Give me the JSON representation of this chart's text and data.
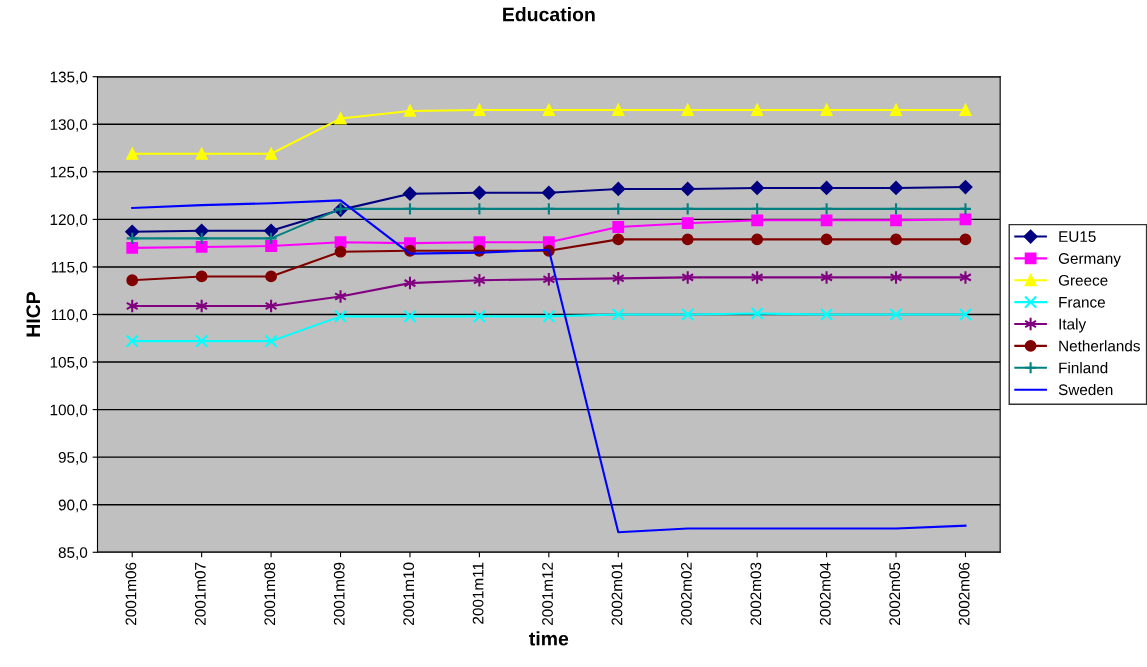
{
  "chart_data": {
    "type": "line",
    "title": "Education",
    "xlabel": "time",
    "ylabel": "HICP",
    "categories": [
      "2001m06",
      "2001m07",
      "2001m08",
      "2001m09",
      "2001m10",
      "2001m11",
      "2001m12",
      "2002m01",
      "2002m02",
      "2002m03",
      "2002m04",
      "2002m05",
      "2002m06"
    ],
    "ylim": [
      85,
      135
    ],
    "yticks": [
      {
        "value": 85,
        "label": "85,0"
      },
      {
        "value": 90,
        "label": "90,0"
      },
      {
        "value": 95,
        "label": "95,0"
      },
      {
        "value": 100,
        "label": "100,0"
      },
      {
        "value": 105,
        "label": "105,0"
      },
      {
        "value": 110,
        "label": "110,0"
      },
      {
        "value": 115,
        "label": "115,0"
      },
      {
        "value": 120,
        "label": "120,0"
      },
      {
        "value": 125,
        "label": "125,0"
      },
      {
        "value": 130,
        "label": "130,0"
      },
      {
        "value": 135,
        "label": "135,0"
      }
    ],
    "grid": "y",
    "legend": "right",
    "series": [
      {
        "name": "EU15",
        "color": "#000080",
        "marker": "diamond",
        "values": [
          118.7,
          118.8,
          118.8,
          121.0,
          122.7,
          122.8,
          122.8,
          123.2,
          123.2,
          123.3,
          123.3,
          123.3,
          123.4
        ]
      },
      {
        "name": "Germany",
        "color": "#ff00ff",
        "marker": "square",
        "values": [
          117.0,
          117.1,
          117.2,
          117.6,
          117.5,
          117.6,
          117.6,
          119.2,
          119.6,
          119.9,
          119.9,
          119.9,
          120.0
        ]
      },
      {
        "name": "Greece",
        "color": "#ffff00",
        "marker": "triangle",
        "values": [
          126.9,
          126.9,
          126.9,
          130.6,
          131.4,
          131.5,
          131.5,
          131.5,
          131.5,
          131.5,
          131.5,
          131.5,
          131.5
        ]
      },
      {
        "name": "France",
        "color": "#00ffff",
        "marker": "cross",
        "values": [
          107.2,
          107.2,
          107.2,
          109.8,
          109.8,
          109.8,
          109.8,
          110.0,
          110.0,
          110.1,
          110.0,
          110.0,
          110.0
        ]
      },
      {
        "name": "Italy",
        "color": "#800080",
        "marker": "cross",
        "values": [
          110.9,
          110.9,
          110.9,
          111.9,
          113.3,
          113.6,
          113.7,
          113.8,
          113.9,
          113.9,
          113.9,
          113.9,
          113.9
        ]
      },
      {
        "name": "Netherlands",
        "color": "#800000",
        "marker": "circle",
        "values": [
          113.6,
          114.0,
          114.0,
          116.6,
          116.7,
          116.7,
          116.7,
          117.9,
          117.9,
          117.9,
          117.9,
          117.9,
          117.9
        ]
      },
      {
        "name": "Finland",
        "color": "#008080",
        "marker": "plus",
        "values": [
          118.0,
          118.0,
          118.0,
          121.1,
          121.1,
          121.1,
          121.1,
          121.1,
          121.1,
          121.1,
          121.1,
          121.1,
          121.1
        ]
      },
      {
        "name": "Sweden",
        "color": "#0000ff",
        "marker": "none",
        "values": [
          121.2,
          121.5,
          121.7,
          122.0,
          116.4,
          116.5,
          116.8,
          87.1,
          87.5,
          87.5,
          87.5,
          87.5,
          87.8
        ]
      }
    ]
  }
}
